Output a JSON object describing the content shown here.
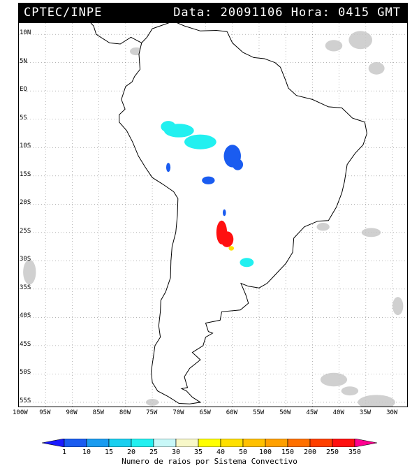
{
  "header": {
    "brand": "CPTEC/INPE",
    "datetime": "Data: 20091106 Hora: 0415 GMT"
  },
  "map": {
    "lat_labels": [
      "10N",
      "5N",
      "EQ",
      "5S",
      "10S",
      "15S",
      "20S",
      "25S",
      "30S",
      "35S",
      "40S",
      "45S",
      "50S",
      "55S"
    ],
    "lon_labels": [
      "100W",
      "95W",
      "90W",
      "85W",
      "80W",
      "75W",
      "70W",
      "65W",
      "60W",
      "55W",
      "50W",
      "45W",
      "40W",
      "35W",
      "30W"
    ],
    "lat_range": [
      -56,
      12
    ],
    "lon_range": [
      -100,
      -27
    ],
    "grid": "dotted",
    "colors": {
      "land_outline": "#000000",
      "cloud_gray": "#c8c8c8",
      "cyan_cells": "#22f0f0",
      "blue_cells": "#1a5cf0",
      "red_cells": "#ff1010",
      "yellow_cells": "#ffe000"
    }
  },
  "colorbar": {
    "labels": [
      "1",
      "10",
      "15",
      "20",
      "25",
      "30",
      "35",
      "40",
      "50",
      "100",
      "150",
      "200",
      "250",
      "350"
    ],
    "colors": [
      "#1a1aff",
      "#1a5cf0",
      "#1a9cf0",
      "#1ad0f0",
      "#22f0f0",
      "#c8f8f8",
      "#f8f8c8",
      "#ffff00",
      "#ffe000",
      "#ffc000",
      "#ffa000",
      "#ff7000",
      "#ff4000",
      "#ff1010",
      "#ff0090"
    ],
    "caption": "Numero de raios por Sistema Convectivo"
  }
}
